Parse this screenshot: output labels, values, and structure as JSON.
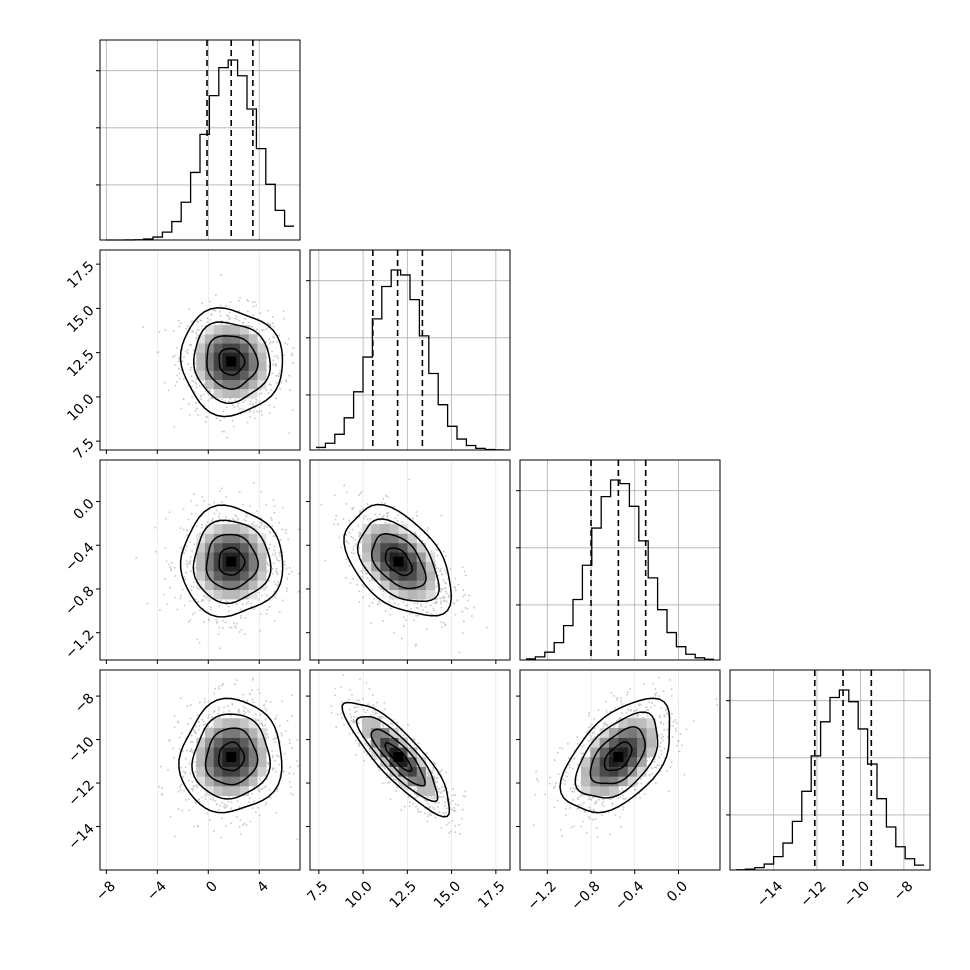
{
  "chart_data": {
    "type": "corner",
    "description_of_panels": "4x4 lower-triangle corner plot; diagonal = 1D histograms with dashed quantile lines, off-diagonal = 2D density (scatter + grayscale bins + contours)",
    "params": [
      {
        "range": [
          -8.5,
          7.2
        ],
        "ticks": [
          "−8",
          "−4",
          "0",
          "4"
        ],
        "tick_values": [
          -8,
          -4,
          0,
          4
        ],
        "mean": 1.8,
        "sd": 2.0,
        "quantiles": [
          -0.1,
          1.8,
          3.5
        ]
      },
      {
        "range": [
          7.0,
          18.3
        ],
        "ticks": [
          "7.5",
          "10.0",
          "12.5",
          "15.0",
          "17.5"
        ],
        "tick_values": [
          7.5,
          10.0,
          12.5,
          15.0,
          17.5
        ],
        "mean": 12.0,
        "sd": 1.5,
        "quantiles": [
          10.55,
          11.95,
          13.35
        ]
      },
      {
        "range": [
          -1.45,
          0.38
        ],
        "ticks": [
          "−1.2",
          "−0.8",
          "−0.4",
          "0.0"
        ],
        "tick_values": [
          -1.2,
          -0.8,
          -0.4,
          0.0
        ],
        "mean": -0.55,
        "sd": 0.25,
        "quantiles": [
          -0.8,
          -0.55,
          -0.3
        ]
      },
      {
        "range": [
          -16.0,
          -6.8
        ],
        "ticks": [
          "−14",
          "−12",
          "−10",
          "−8"
        ],
        "tick_values": [
          -14,
          -12,
          -10,
          -8
        ],
        "mean": -10.8,
        "sd": 1.3,
        "quantiles": [
          -12.1,
          -10.8,
          -9.5
        ]
      }
    ],
    "correlations": [
      {
        "i": 1,
        "j": 0,
        "rho": -0.05
      },
      {
        "i": 2,
        "j": 0,
        "rho": 0.0
      },
      {
        "i": 2,
        "j": 1,
        "rho": -0.45
      },
      {
        "i": 3,
        "j": 0,
        "rho": 0.05
      },
      {
        "i": 3,
        "j": 1,
        "rho": -0.85
      },
      {
        "i": 3,
        "j": 2,
        "rho": 0.5
      }
    ],
    "diag_hist_bins": 20,
    "grid": true,
    "colors": {
      "points": "#9a9a9a",
      "line": "#000000",
      "grid": "#b0b0b0"
    }
  }
}
